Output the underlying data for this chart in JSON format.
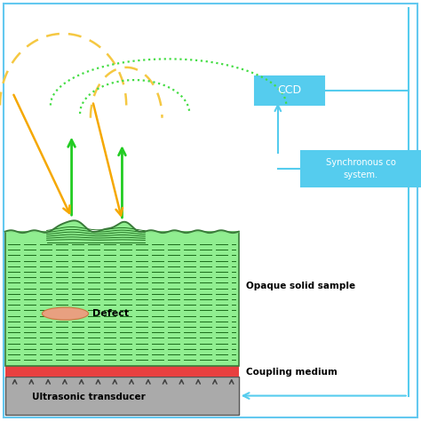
{
  "bg_color": "#ffffff",
  "border_color": "#63c8f0",
  "sample_green": "#90ee90",
  "sample_dark_green": "#2d8b2d",
  "sample_edge": "#3a7a3a",
  "coupling_red": "#e84040",
  "transducer_gray": "#aaaaaa",
  "transducer_edge": "#555555",
  "defect_fill": "#e8a080",
  "defect_edge": "#cc7740",
  "ccd_box": "#55ccee",
  "sync_box": "#55ccee",
  "arrow_blue": "#55ccee",
  "yellow_dash": "#f5c842",
  "green_dot": "#44dd44",
  "green_arrow": "#22cc22",
  "orange_arrow": "#f5a800",
  "dark_gray_arrow": "#444444",
  "line_dark_green": "#1a6b1a",
  "ccd_label": "CCD",
  "sync_label": "Synchronous co\nsystem.",
  "defect_label": "Defect",
  "sample_label": "Opaque solid sample",
  "coupling_label": "Coupling medium",
  "transducer_label": "Ultrasonic transducer"
}
